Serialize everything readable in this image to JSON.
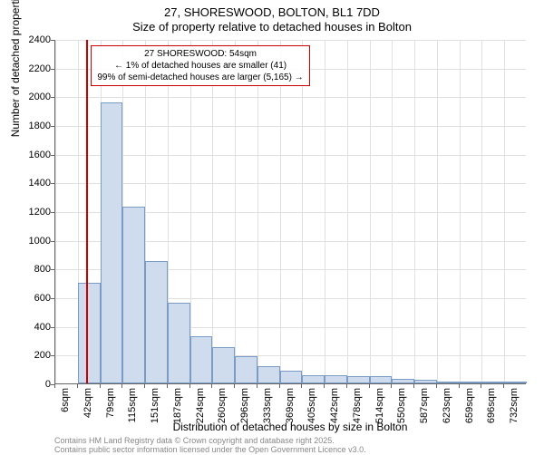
{
  "title_line1": "27, SHORESWOOD, BOLTON, BL1 7DD",
  "title_line2": "Size of property relative to detached houses in Bolton",
  "y_axis_label": "Number of detached properties",
  "x_axis_label": "Distribution of detached houses by size in Bolton",
  "footer_line1": "Contains HM Land Registry data © Crown copyright and database right 2025.",
  "footer_line2": "Contains public sector information licensed under the Open Government Licence v3.0.",
  "chart": {
    "type": "histogram",
    "background_color": "#ffffff",
    "grid_color": "#e0e0e0",
    "axis_color": "#666666",
    "bar_fill": "#cedcee",
    "bar_border": "#7a9bc4",
    "marker_color": "#cc0000",
    "ylim": [
      0,
      2400
    ],
    "ytick_step": 200,
    "y_ticks": [
      0,
      200,
      400,
      600,
      800,
      1000,
      1200,
      1400,
      1600,
      1800,
      2000,
      2200,
      2400
    ],
    "x_tick_labels": [
      "6sqm",
      "42sqm",
      "79sqm",
      "115sqm",
      "151sqm",
      "187sqm",
      "224sqm",
      "260sqm",
      "296sqm",
      "333sqm",
      "369sqm",
      "405sqm",
      "442sqm",
      "478sqm",
      "514sqm",
      "550sqm",
      "587sqm",
      "623sqm",
      "659sqm",
      "696sqm",
      "732sqm"
    ],
    "bar_values": [
      0,
      700,
      1960,
      1230,
      850,
      560,
      330,
      250,
      190,
      120,
      90,
      60,
      60,
      50,
      50,
      30,
      25,
      10,
      10,
      5,
      5
    ],
    "marker_x_value": 54,
    "x_range": [
      6,
      732
    ],
    "callout": {
      "line1": "27 SHORESWOOD: 54sqm",
      "line2": "← 1% of detached houses are smaller (41)",
      "line3": "99% of semi-detached houses are larger (5,165) →"
    },
    "title_fontsize": 13,
    "label_fontsize": 12,
    "tick_fontsize": 11,
    "callout_fontsize": 10,
    "footer_fontsize": 9
  }
}
